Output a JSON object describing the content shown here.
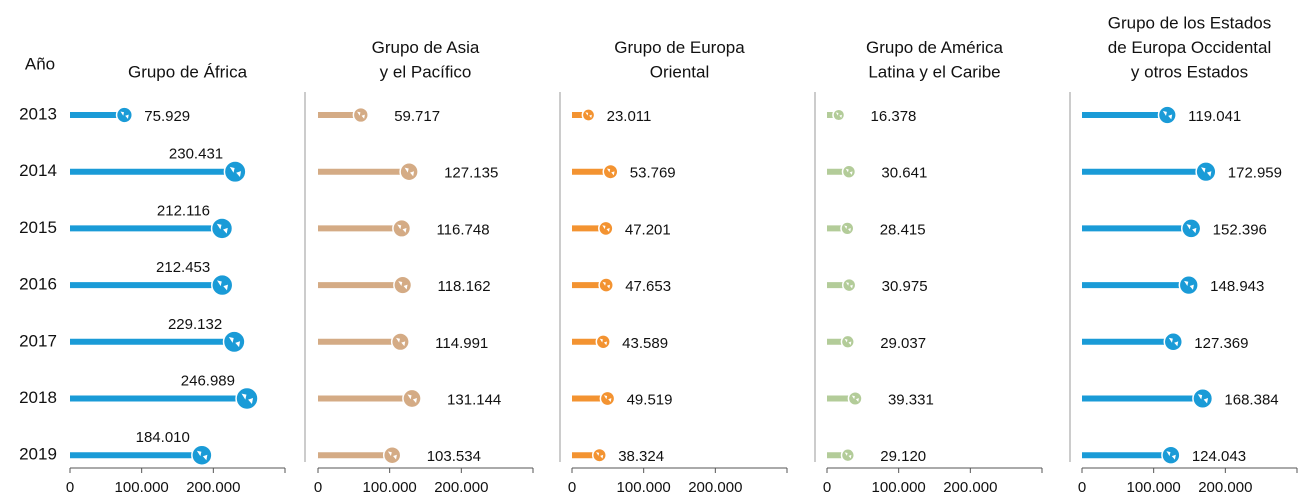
{
  "chart_data": [
    {
      "type": "bar",
      "ylabel": "Año",
      "title": [
        "Grupo de África"
      ],
      "categories": [
        "2013",
        "2014",
        "2015",
        "2016",
        "2017",
        "2018",
        "2019"
      ],
      "values": [
        75929,
        230431,
        212116,
        212453,
        229132,
        246989,
        184010
      ],
      "value_labels": [
        "75.929",
        "230.431",
        "212.116",
        "212.453",
        "229.132",
        "246.989",
        "184.010"
      ],
      "color": "#1a9bd7",
      "xlim": [
        0,
        300000
      ],
      "xticks": [
        0,
        {
          "value": 100000,
          "label": "100.000"
        },
        {
          "value": 200000,
          "label": "200.000"
        }
      ]
    },
    {
      "type": "bar",
      "title": [
        "Grupo de Asia",
        "y el Pacífico"
      ],
      "values": [
        59717,
        127135,
        116748,
        118162,
        114991,
        131144,
        103534
      ],
      "value_labels": [
        "59.717",
        "127.135",
        "116.748",
        "118.162",
        "114.991",
        "131.144",
        "103.534"
      ],
      "color": "#d4ab85",
      "xlim": [
        0,
        300000
      ],
      "xticks": [
        0,
        {
          "value": 100000,
          "label": "100.000"
        },
        {
          "value": 200000,
          "label": "200.000"
        }
      ]
    },
    {
      "type": "bar",
      "title": [
        "Grupo de Europa",
        "Oriental"
      ],
      "values": [
        23011,
        53769,
        47201,
        47653,
        43589,
        49519,
        38324
      ],
      "value_labels": [
        "23.011",
        "53.769",
        "47.201",
        "47.653",
        "43.589",
        "49.519",
        "38.324"
      ],
      "color": "#f39331",
      "xlim": [
        0,
        300000
      ],
      "xticks": [
        0,
        {
          "value": 100000,
          "label": "100.000"
        },
        {
          "value": 200000,
          "label": "200.000"
        }
      ]
    },
    {
      "type": "bar",
      "title": [
        "Grupo de América",
        "Latina y el Caribe"
      ],
      "values": [
        16378,
        30641,
        28415,
        30975,
        29037,
        39331,
        29120
      ],
      "value_labels": [
        "16.378",
        "30.641",
        "28.415",
        "30.975",
        "29.037",
        "39.331",
        "29.120"
      ],
      "color": "#b3cc99",
      "xlim": [
        0,
        300000
      ],
      "xticks": [
        0,
        {
          "value": 100000,
          "label": "100.000"
        },
        {
          "value": 200000,
          "label": "200.000"
        }
      ]
    },
    {
      "type": "bar",
      "title": [
        "Grupo de los Estados",
        "de Europa Occidental",
        "y otros Estados"
      ],
      "values": [
        119041,
        172959,
        152396,
        148943,
        127369,
        168384,
        124043
      ],
      "value_labels": [
        "119.041",
        "172.959",
        "152.396",
        "148.943",
        "127.369",
        "168.384",
        "124.043"
      ],
      "color": "#1a9bd7",
      "xlim": [
        0,
        300000
      ],
      "xticks": [
        0,
        {
          "value": 100000,
          "label": "100.000"
        },
        {
          "value": 200000,
          "label": "200.000"
        }
      ]
    }
  ]
}
